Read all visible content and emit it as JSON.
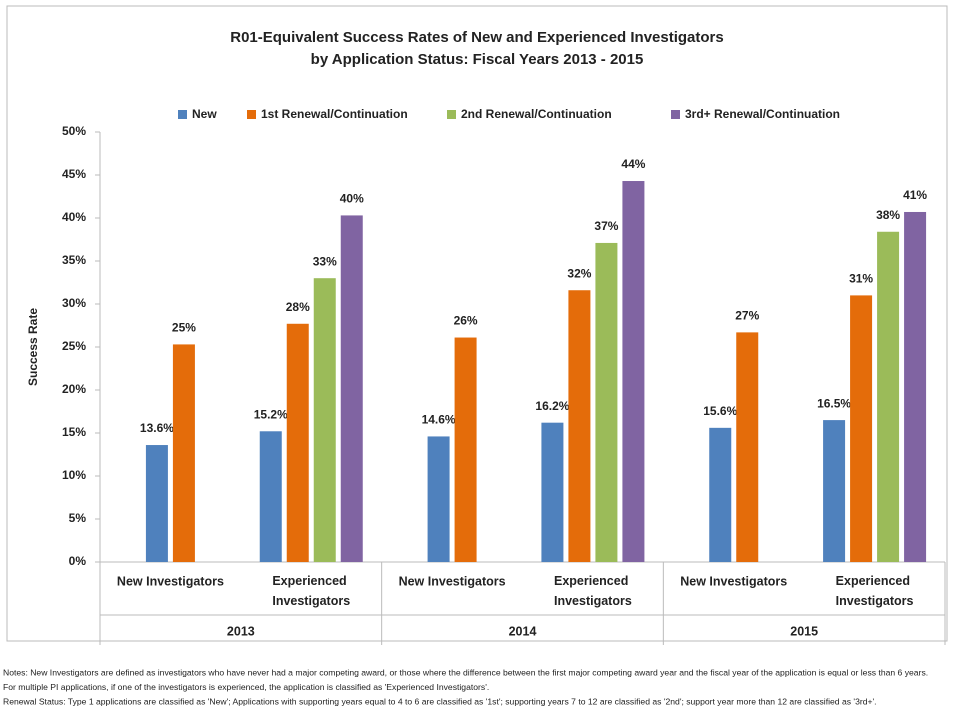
{
  "chart_data": {
    "type": "bar",
    "title": [
      "R01-Equivalent Success Rates of New and Experienced Investigators",
      "by Application Status:  Fiscal Years 2013 - 2015"
    ],
    "y_label": "Success Rate",
    "categories": [
      "New Investigators",
      "Experienced Investigators",
      "New Investigators",
      "Experienced Investigators",
      "New Investigators",
      "Experienced Investigators"
    ],
    "group_labels": [
      "2013",
      "2014",
      "2015"
    ],
    "series": [
      {
        "name": "New",
        "color": "#4f81bd",
        "values": [
          13.6,
          15.2,
          14.6,
          16.2,
          15.6,
          16.5
        ],
        "value_labels": [
          "13.6%",
          "15.2%",
          "14.6%",
          "16.2%",
          "15.6%",
          "16.5%"
        ]
      },
      {
        "name": "1st Renewal/Continuation",
        "color": "#e46c0a",
        "values": [
          25.3,
          27.7,
          26.1,
          31.6,
          26.7,
          31.0
        ],
        "value_labels": [
          "25%",
          "28%",
          "26%",
          "32%",
          "27%",
          "31%"
        ]
      },
      {
        "name": "2nd Renewal/Continuation",
        "color": "#9bbb59",
        "values": [
          null,
          33.0,
          null,
          37.1,
          null,
          38.4
        ],
        "value_labels": [
          null,
          "33%",
          null,
          "37%",
          null,
          "38%"
        ]
      },
      {
        "name": "3rd+ Renewal/Continuation",
        "color": "#8064a2",
        "values": [
          null,
          40.3,
          null,
          44.3,
          null,
          40.7
        ],
        "value_labels": [
          null,
          "40%",
          null,
          "44%",
          null,
          "41%"
        ]
      }
    ],
    "ylim": [
      0,
      50
    ],
    "yticks": [
      {
        "value": 0,
        "label": "0%"
      },
      {
        "value": 5,
        "label": "5%"
      },
      {
        "value": 10,
        "label": "10%"
      },
      {
        "value": 15,
        "label": "15%"
      },
      {
        "value": 20,
        "label": "20%"
      },
      {
        "value": 25,
        "label": "25%"
      },
      {
        "value": 30,
        "label": "30%"
      },
      {
        "value": 35,
        "label": "35%"
      },
      {
        "value": 40,
        "label": "40%"
      },
      {
        "value": 45,
        "label": "45%"
      },
      {
        "value": 50,
        "label": "50%"
      }
    ],
    "grid": false,
    "legend": "top",
    "notes": [
      "Notes: New Investigators are defined as investigators who have never had a major competing award, or those where the difference between the first major competing award year and the fiscal year of the application is equal or less than 6 years.",
      "For multiple PI applications, if one of the investigators is experienced, the application is classified as 'Experienced Investigators'.",
      "Renewal Status:  Type 1 applications are classified as 'New'; Applications with supporting years equal to 4 to 6 are classified as '1st'; supporting years 7 to 12 are classified as '2nd'; support year more than 12 are classified as '3rd+'."
    ]
  }
}
